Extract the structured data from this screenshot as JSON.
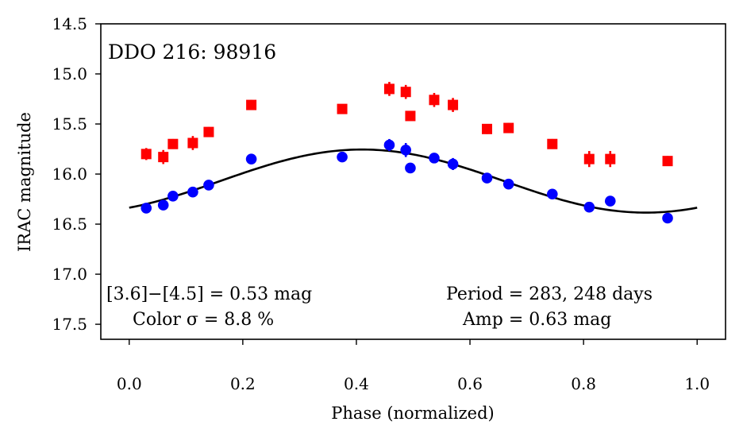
{
  "chart_data": {
    "type": "scatter",
    "title": "DDO 216:  98916",
    "xlabel": "Phase (normalized)",
    "ylabel": "IRAC magnitude",
    "xlim": [
      -0.05,
      1.05
    ],
    "ylim": [
      14.5,
      17.65
    ],
    "y_inverted": true,
    "grid": false,
    "x_ticks": [
      0.0,
      0.2,
      0.4,
      0.6,
      0.8,
      1.0
    ],
    "x_tick_labels": [
      "0.0",
      "0.2",
      "0.4",
      "0.6",
      "0.8",
      "1.0"
    ],
    "y_ticks": [
      14.5,
      15.0,
      15.5,
      16.0,
      16.5,
      17.0,
      17.5
    ],
    "y_tick_labels": [
      "14.5",
      "15.0",
      "15.5",
      "16.0",
      "16.5",
      "17.0",
      "17.5"
    ],
    "series": [
      {
        "name": "[4.5] (red squares)",
        "marker": "square",
        "color": "#ff0000",
        "x": [
          0.03,
          0.06,
          0.077,
          0.112,
          0.14,
          0.215,
          0.375,
          0.458,
          0.487,
          0.495,
          0.537,
          0.57,
          0.63,
          0.668,
          0.745,
          0.81,
          0.847,
          0.948
        ],
        "y": [
          15.8,
          15.83,
          15.7,
          15.69,
          15.58,
          15.31,
          15.35,
          15.15,
          15.18,
          15.42,
          15.26,
          15.31,
          15.55,
          15.54,
          15.7,
          15.85,
          15.85,
          15.87
        ],
        "err": [
          0.06,
          0.07,
          0.05,
          0.07,
          0.05,
          0.05,
          0.04,
          0.07,
          0.07,
          0.04,
          0.07,
          0.07,
          0.05,
          0.05,
          0.05,
          0.08,
          0.08,
          0.05
        ]
      },
      {
        "name": "[3.6] (blue circles)",
        "marker": "circle",
        "color": "#0000ff",
        "x": [
          0.03,
          0.06,
          0.077,
          0.112,
          0.14,
          0.215,
          0.375,
          0.458,
          0.487,
          0.495,
          0.537,
          0.57,
          0.63,
          0.668,
          0.745,
          0.81,
          0.847,
          0.948
        ],
        "y": [
          16.34,
          16.31,
          16.22,
          16.18,
          16.11,
          15.85,
          15.83,
          15.71,
          15.76,
          15.94,
          15.84,
          15.9,
          16.04,
          16.1,
          16.2,
          16.33,
          16.27,
          16.44
        ],
        "err": [
          0.03,
          0.03,
          0.05,
          0.04,
          0.03,
          0.03,
          0.03,
          0.06,
          0.07,
          0.05,
          0.05,
          0.06,
          0.03,
          0.03,
          0.04,
          0.03,
          0.03,
          0.03
        ]
      }
    ],
    "fit_curve": {
      "name": "sinusoid fit",
      "color": "#000000",
      "x_range": [
        0.0,
        1.0
      ],
      "mean": 16.07,
      "amplitude": 0.315,
      "phase_peak": 0.41
    },
    "annotations": {
      "color_diff": "[3.6]−[4.5] = 0.53 mag",
      "color_sigma": "Color σ = 8.8 %",
      "period": "Period = 283, 248 days",
      "amplitude": "Amp = 0.63 mag"
    }
  }
}
